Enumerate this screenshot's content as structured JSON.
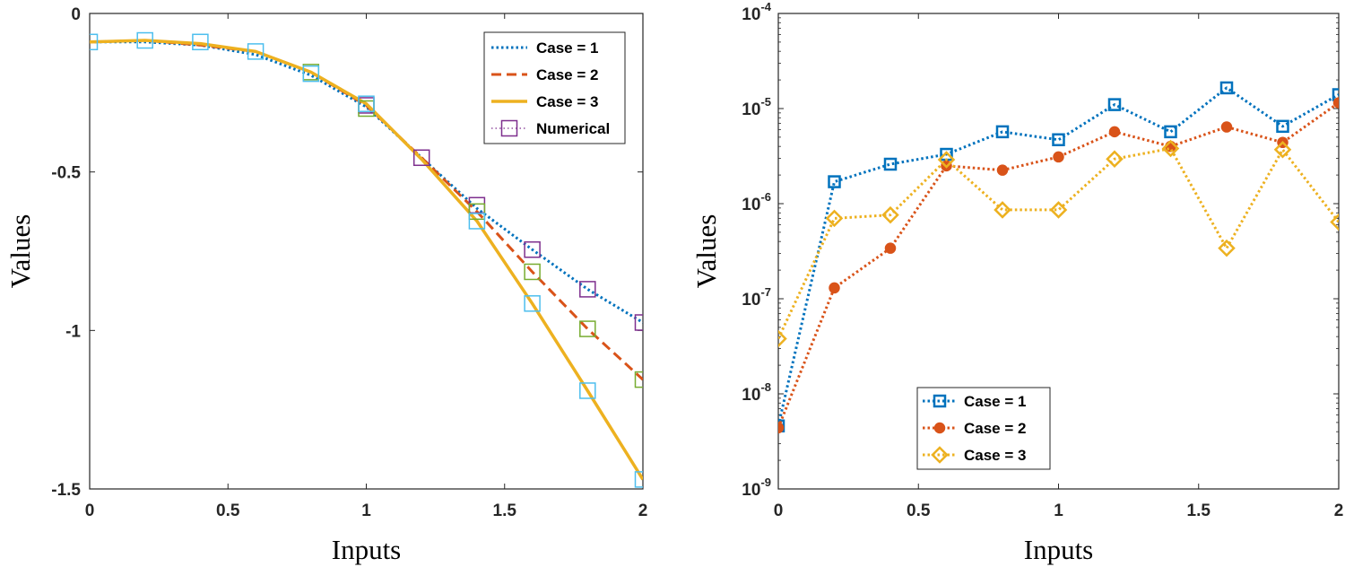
{
  "chart_data": [
    {
      "type": "line",
      "title": "",
      "xlabel": "Inputs",
      "ylabel": "Values",
      "xlim": [
        0,
        2
      ],
      "ylim": [
        -1.5,
        0
      ],
      "xscale": "linear",
      "yscale": "linear",
      "grid": false,
      "legend_position": "top-right",
      "x_ticks": [
        0,
        0.5,
        1,
        1.5,
        2
      ],
      "x_tick_labels": [
        "0",
        "0.5",
        "1",
        "1.5",
        "2"
      ],
      "y_ticks": [
        0,
        -0.5,
        -1,
        -1.5
      ],
      "y_tick_labels": [
        "0",
        "-0.5",
        "-1",
        "-1.5"
      ],
      "series": [
        {
          "name": "Case = 1",
          "style": "dotted",
          "color": "#0072BD",
          "x": [
            0,
            0.2,
            0.4,
            0.6,
            0.8,
            1.0,
            1.2,
            1.4,
            1.6,
            1.8,
            2.0
          ],
          "y": [
            -0.09,
            -0.09,
            -0.1,
            -0.13,
            -0.195,
            -0.295,
            -0.455,
            -0.615,
            -0.745,
            -0.87,
            -0.975
          ]
        },
        {
          "name": "Case = 2",
          "style": "dashed",
          "color": "#D95319",
          "x": [
            0,
            0.2,
            0.4,
            0.6,
            0.8,
            1.0,
            1.2,
            1.4,
            1.6,
            1.8,
            2.0
          ],
          "y": [
            -0.09,
            -0.085,
            -0.1,
            -0.12,
            -0.185,
            -0.29,
            -0.455,
            -0.625,
            -0.815,
            -0.995,
            -1.155
          ]
        },
        {
          "name": "Case = 3",
          "style": "solid",
          "color": "#EDB120",
          "x": [
            0,
            0.2,
            0.4,
            0.6,
            0.8,
            1.0,
            1.2,
            1.4,
            1.6,
            1.8,
            2.0
          ],
          "y": [
            -0.09,
            -0.085,
            -0.095,
            -0.12,
            -0.185,
            -0.285,
            -0.46,
            -0.655,
            -0.915,
            -1.19,
            -1.47
          ]
        },
        {
          "name": "Numerical",
          "style": "markers",
          "color": "#7E2F8E",
          "marker": "square",
          "points": [
            {
              "x": 0,
              "y": -0.09,
              "color": "#4DBEEE"
            },
            {
              "x": 0.2,
              "y": -0.085,
              "color": "#4DBEEE"
            },
            {
              "x": 0.4,
              "y": -0.09,
              "color": "#4DBEEE"
            },
            {
              "x": 0.6,
              "y": -0.12,
              "color": "#4DBEEE"
            },
            {
              "x": 0.8,
              "y": -0.185,
              "color": "#77AC30"
            },
            {
              "x": 0.8,
              "y": -0.19,
              "color": "#4DBEEE"
            },
            {
              "x": 1.0,
              "y": -0.29,
              "color": "#7E2F8E"
            },
            {
              "x": 1.0,
              "y": -0.3,
              "color": "#77AC30"
            },
            {
              "x": 1.0,
              "y": -0.285,
              "color": "#4DBEEE"
            },
            {
              "x": 1.2,
              "y": -0.455,
              "color": "#7E2F8E"
            },
            {
              "x": 1.4,
              "y": -0.605,
              "color": "#7E2F8E"
            },
            {
              "x": 1.4,
              "y": -0.625,
              "color": "#77AC30"
            },
            {
              "x": 1.4,
              "y": -0.655,
              "color": "#4DBEEE"
            },
            {
              "x": 1.6,
              "y": -0.745,
              "color": "#7E2F8E"
            },
            {
              "x": 1.6,
              "y": -0.815,
              "color": "#77AC30"
            },
            {
              "x": 1.6,
              "y": -0.915,
              "color": "#4DBEEE"
            },
            {
              "x": 1.8,
              "y": -0.87,
              "color": "#7E2F8E"
            },
            {
              "x": 1.8,
              "y": -0.995,
              "color": "#77AC30"
            },
            {
              "x": 1.8,
              "y": -1.19,
              "color": "#4DBEEE"
            },
            {
              "x": 2.0,
              "y": -0.975,
              "color": "#7E2F8E"
            },
            {
              "x": 2.0,
              "y": -1.155,
              "color": "#77AC30"
            },
            {
              "x": 2.0,
              "y": -1.47,
              "color": "#4DBEEE"
            }
          ]
        }
      ]
    },
    {
      "type": "line",
      "title": "",
      "xlabel": "Inputs",
      "ylabel": "Values",
      "xlim": [
        0,
        2
      ],
      "ylim": [
        1e-09,
        0.0001
      ],
      "xscale": "linear",
      "yscale": "log",
      "grid": false,
      "legend_position": "bottom-left",
      "x_ticks": [
        0,
        0.5,
        1,
        1.5,
        2
      ],
      "x_tick_labels": [
        "0",
        "0.5",
        "1",
        "1.5",
        "2"
      ],
      "y_ticks": [
        -9,
        -8,
        -7,
        -6,
        -5,
        -4
      ],
      "y_tick_labels": [
        {
          "base": "10",
          "exp": "-9"
        },
        {
          "base": "10",
          "exp": "-8"
        },
        {
          "base": "10",
          "exp": "-7"
        },
        {
          "base": "10",
          "exp": "-6"
        },
        {
          "base": "10",
          "exp": "-5"
        },
        {
          "base": "10",
          "exp": "-4"
        }
      ],
      "series": [
        {
          "name": "Case = 1",
          "style": "dotted",
          "marker": "square",
          "color": "#0072BD",
          "x": [
            0,
            0.2,
            0.4,
            0.6,
            0.8,
            1.0,
            1.2,
            1.4,
            1.6,
            1.8,
            2.0
          ],
          "y": [
            4.6e-09,
            1.7e-06,
            2.6e-06,
            3.3e-06,
            5.7e-06,
            4.7e-06,
            1.1e-05,
            5.7e-06,
            1.65e-05,
            6.5e-06,
            1.4e-05
          ]
        },
        {
          "name": "Case = 2",
          "style": "dotted",
          "marker": "star",
          "color": "#D95319",
          "x": [
            0,
            0.2,
            0.4,
            0.6,
            0.8,
            1.0,
            1.2,
            1.4,
            1.6,
            1.8,
            2.0
          ],
          "y": [
            4.4e-09,
            1.3e-07,
            3.4e-07,
            2.5e-06,
            2.25e-06,
            3.1e-06,
            5.7e-06,
            4e-06,
            6.4e-06,
            4.4e-06,
            1.15e-05
          ]
        },
        {
          "name": "Case = 3",
          "style": "dotted",
          "marker": "diamond",
          "color": "#EDB120",
          "x": [
            0,
            0.2,
            0.4,
            0.6,
            0.8,
            1.0,
            1.2,
            1.4,
            1.6,
            1.8,
            2.0
          ],
          "y": [
            3.8e-08,
            7e-07,
            7.6e-07,
            2.9e-06,
            8.6e-07,
            8.6e-07,
            2.95e-06,
            3.8e-06,
            3.4e-07,
            3.7e-06,
            6.4e-07
          ]
        }
      ]
    }
  ]
}
